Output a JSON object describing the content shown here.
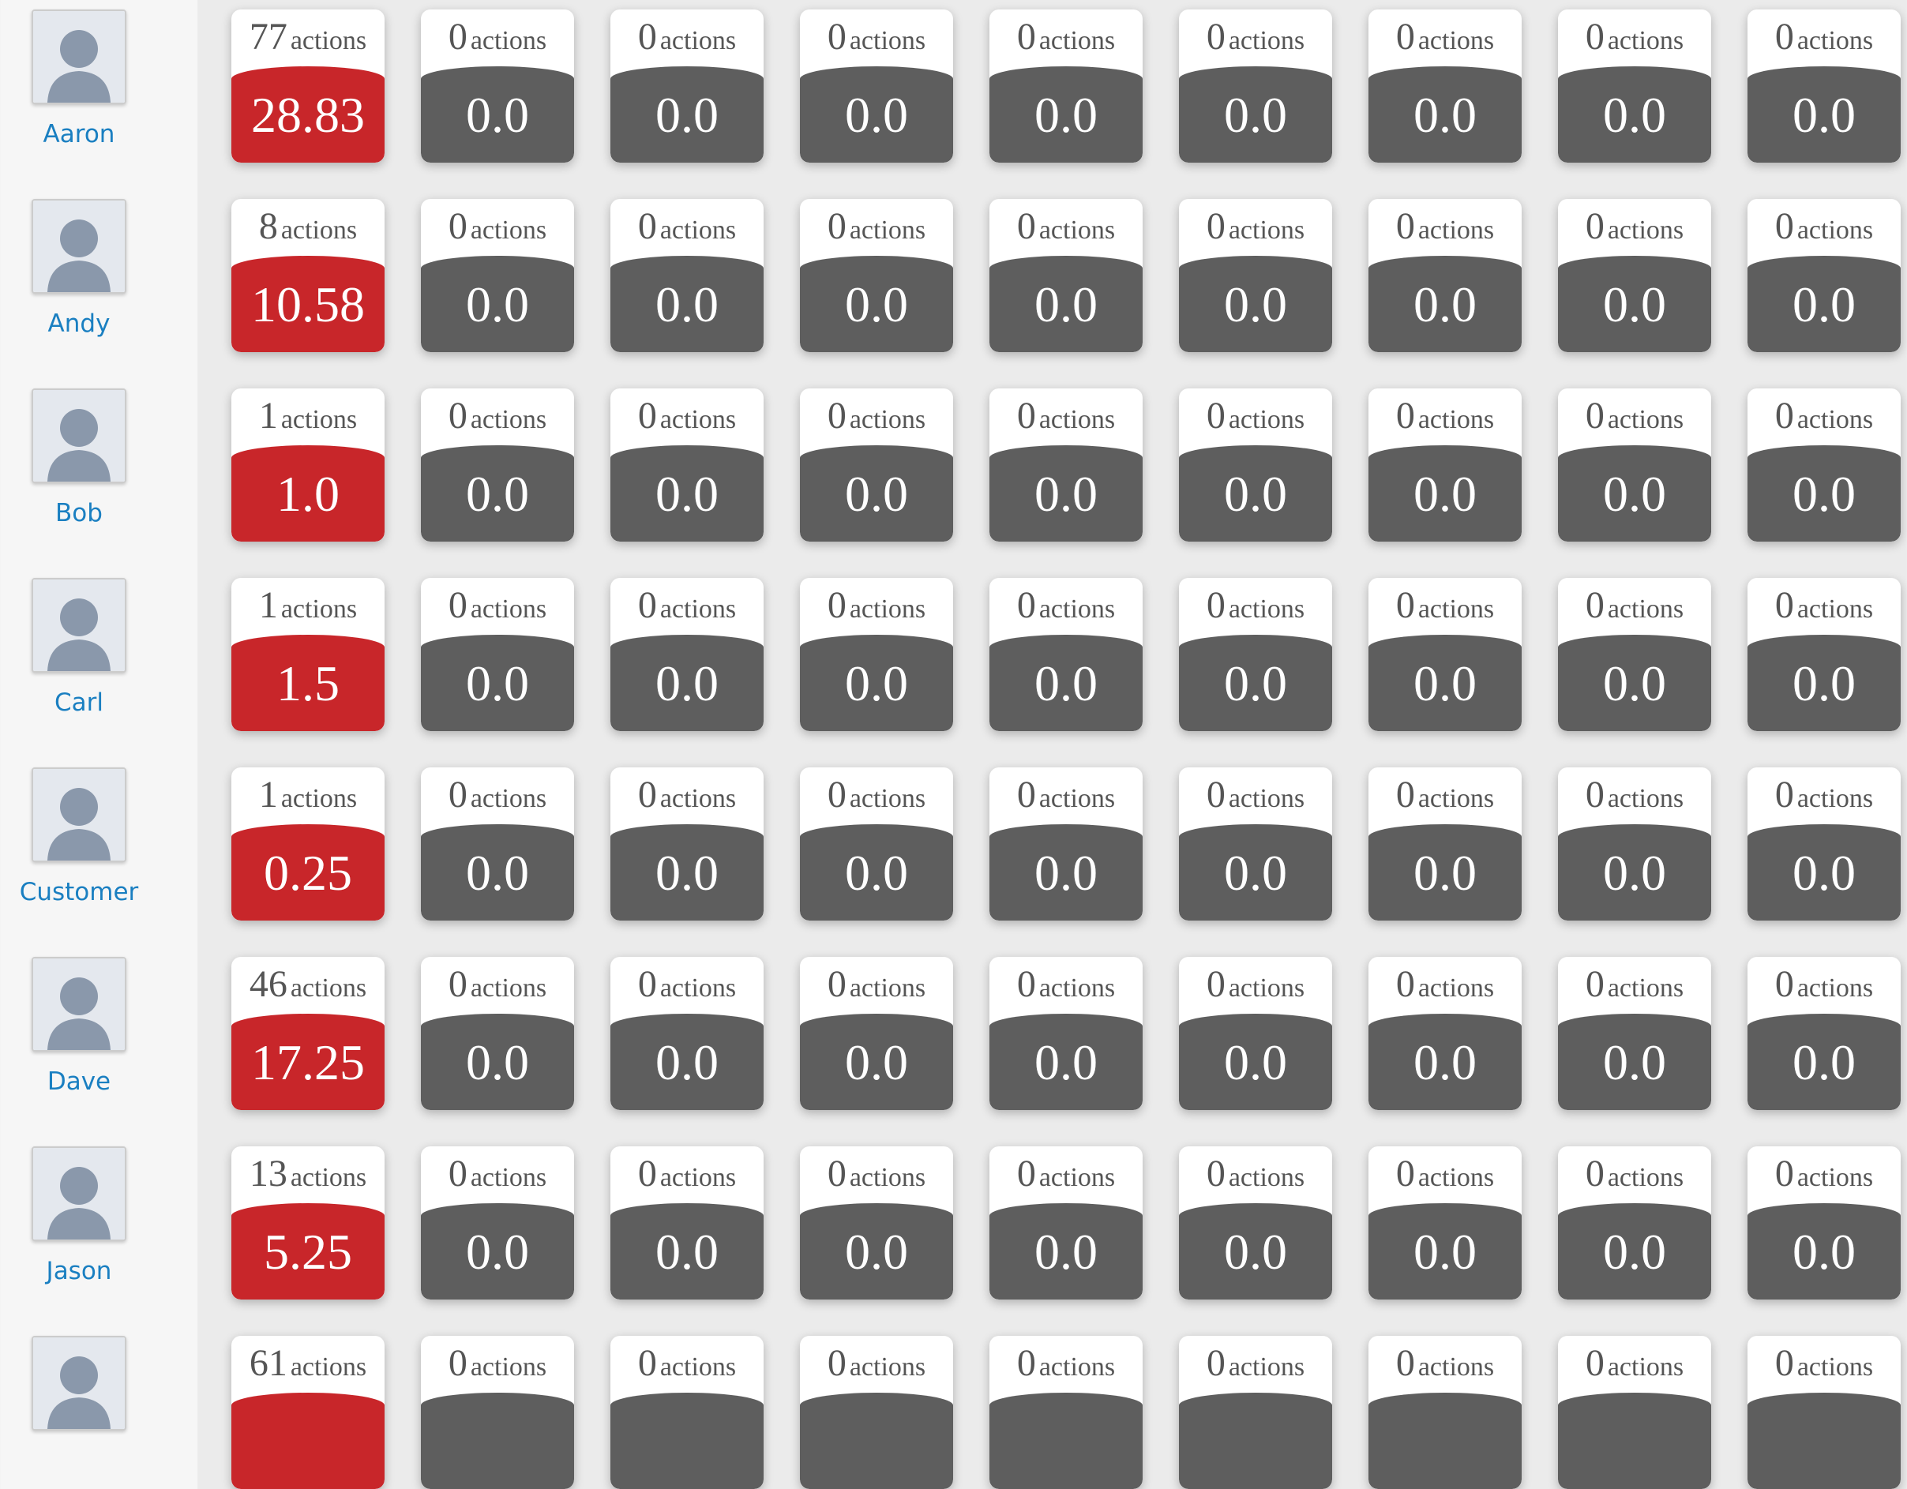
{
  "unit": "actions",
  "rows": [
    {
      "name": "Aaron",
      "cells": [
        {
          "count": 77,
          "score": "28.83"
        },
        {
          "count": 0,
          "score": "0.0"
        },
        {
          "count": 0,
          "score": "0.0"
        },
        {
          "count": 0,
          "score": "0.0"
        },
        {
          "count": 0,
          "score": "0.0"
        },
        {
          "count": 0,
          "score": "0.0"
        },
        {
          "count": 0,
          "score": "0.0"
        },
        {
          "count": 0,
          "score": "0.0"
        },
        {
          "count": 0,
          "score": "0.0"
        }
      ]
    },
    {
      "name": "Andy",
      "cells": [
        {
          "count": 8,
          "score": "10.58"
        },
        {
          "count": 0,
          "score": "0.0"
        },
        {
          "count": 0,
          "score": "0.0"
        },
        {
          "count": 0,
          "score": "0.0"
        },
        {
          "count": 0,
          "score": "0.0"
        },
        {
          "count": 0,
          "score": "0.0"
        },
        {
          "count": 0,
          "score": "0.0"
        },
        {
          "count": 0,
          "score": "0.0"
        },
        {
          "count": 0,
          "score": "0.0"
        }
      ]
    },
    {
      "name": "Bob",
      "cells": [
        {
          "count": 1,
          "score": "1.0"
        },
        {
          "count": 0,
          "score": "0.0"
        },
        {
          "count": 0,
          "score": "0.0"
        },
        {
          "count": 0,
          "score": "0.0"
        },
        {
          "count": 0,
          "score": "0.0"
        },
        {
          "count": 0,
          "score": "0.0"
        },
        {
          "count": 0,
          "score": "0.0"
        },
        {
          "count": 0,
          "score": "0.0"
        },
        {
          "count": 0,
          "score": "0.0"
        }
      ]
    },
    {
      "name": "Carl",
      "cells": [
        {
          "count": 1,
          "score": "1.5"
        },
        {
          "count": 0,
          "score": "0.0"
        },
        {
          "count": 0,
          "score": "0.0"
        },
        {
          "count": 0,
          "score": "0.0"
        },
        {
          "count": 0,
          "score": "0.0"
        },
        {
          "count": 0,
          "score": "0.0"
        },
        {
          "count": 0,
          "score": "0.0"
        },
        {
          "count": 0,
          "score": "0.0"
        },
        {
          "count": 0,
          "score": "0.0"
        }
      ]
    },
    {
      "name": "Customer",
      "cells": [
        {
          "count": 1,
          "score": "0.25"
        },
        {
          "count": 0,
          "score": "0.0"
        },
        {
          "count": 0,
          "score": "0.0"
        },
        {
          "count": 0,
          "score": "0.0"
        },
        {
          "count": 0,
          "score": "0.0"
        },
        {
          "count": 0,
          "score": "0.0"
        },
        {
          "count": 0,
          "score": "0.0"
        },
        {
          "count": 0,
          "score": "0.0"
        },
        {
          "count": 0,
          "score": "0.0"
        }
      ]
    },
    {
      "name": "Dave",
      "cells": [
        {
          "count": 46,
          "score": "17.25"
        },
        {
          "count": 0,
          "score": "0.0"
        },
        {
          "count": 0,
          "score": "0.0"
        },
        {
          "count": 0,
          "score": "0.0"
        },
        {
          "count": 0,
          "score": "0.0"
        },
        {
          "count": 0,
          "score": "0.0"
        },
        {
          "count": 0,
          "score": "0.0"
        },
        {
          "count": 0,
          "score": "0.0"
        },
        {
          "count": 0,
          "score": "0.0"
        }
      ]
    },
    {
      "name": "Jason",
      "cells": [
        {
          "count": 13,
          "score": "5.25"
        },
        {
          "count": 0,
          "score": "0.0"
        },
        {
          "count": 0,
          "score": "0.0"
        },
        {
          "count": 0,
          "score": "0.0"
        },
        {
          "count": 0,
          "score": "0.0"
        },
        {
          "count": 0,
          "score": "0.0"
        },
        {
          "count": 0,
          "score": "0.0"
        },
        {
          "count": 0,
          "score": "0.0"
        },
        {
          "count": 0,
          "score": "0.0"
        }
      ]
    },
    {
      "cells": [
        {
          "count": 61
        },
        {
          "count": 0
        },
        {
          "count": 0
        },
        {
          "count": 0
        },
        {
          "count": 0
        },
        {
          "count": 0
        },
        {
          "count": 0
        },
        {
          "count": 0
        },
        {
          "count": 0
        }
      ]
    }
  ]
}
